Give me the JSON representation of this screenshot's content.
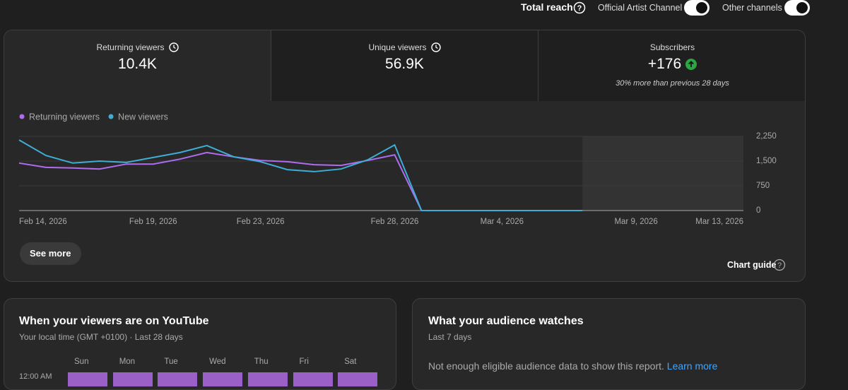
{
  "top_bar": {
    "total_reach": "Total reach",
    "toggles": [
      "Official Artist Channel",
      "Other channels"
    ]
  },
  "metrics": [
    {
      "label": "Returning viewers",
      "value": "10.4K"
    },
    {
      "label": "Unique viewers",
      "value": "56.9K"
    },
    {
      "label": "Subscribers",
      "value": "+176",
      "note": "30% more than previous 28 days"
    }
  ],
  "chart": {
    "type": "line",
    "categories": [
      "Feb 14, 2026",
      null,
      null,
      null,
      null,
      "Feb 19, 2026",
      null,
      null,
      null,
      "Feb 23, 2026",
      null,
      null,
      null,
      null,
      "Feb 28, 2026",
      null,
      null,
      null,
      "Mar 4, 2026",
      null,
      null,
      null,
      null,
      "Mar 9, 2026",
      null,
      null,
      null,
      "Mar 13, 2026"
    ],
    "series": [
      {
        "name": "Returning viewers",
        "color": "#b06cf0",
        "values": [
          1440,
          1310,
          1290,
          1260,
          1410,
          1410,
          1560,
          1760,
          1630,
          1520,
          1480,
          1390,
          1370,
          1520,
          1690,
          0,
          0,
          0,
          0,
          0,
          0,
          0,
          null,
          null,
          null,
          null,
          null,
          null
        ]
      },
      {
        "name": "New viewers",
        "color": "#3eaed4",
        "values": [
          2140,
          1670,
          1440,
          1500,
          1460,
          1610,
          1760,
          1970,
          1630,
          1480,
          1240,
          1180,
          1260,
          1540,
          1990,
          0,
          0,
          0,
          0,
          0,
          0,
          0,
          null,
          null,
          null,
          null,
          null,
          null
        ]
      }
    ],
    "ylim": [
      0,
      2250
    ],
    "yticks": [
      0,
      750,
      {
        "value": 1500,
        "label": "1,500"
      },
      {
        "value": 2250,
        "label": "2,250"
      }
    ],
    "grid": true
  },
  "see_more": "See more",
  "chart_guide": "Chart guide",
  "when_card": {
    "title": "When your viewers are on YouTube",
    "subtitle": "Your local time (GMT +0100) · Last 28 days",
    "days": [
      "Sun",
      "Mon",
      "Tue",
      "Wed",
      "Thu",
      "Fri",
      "Sat"
    ],
    "times": [
      "12:00 AM"
    ]
  },
  "watch_card": {
    "title": "What your audience watches",
    "subtitle": "Last 7 days",
    "message": "Not enough eligible audience data to show this report.",
    "link": "Learn more"
  }
}
